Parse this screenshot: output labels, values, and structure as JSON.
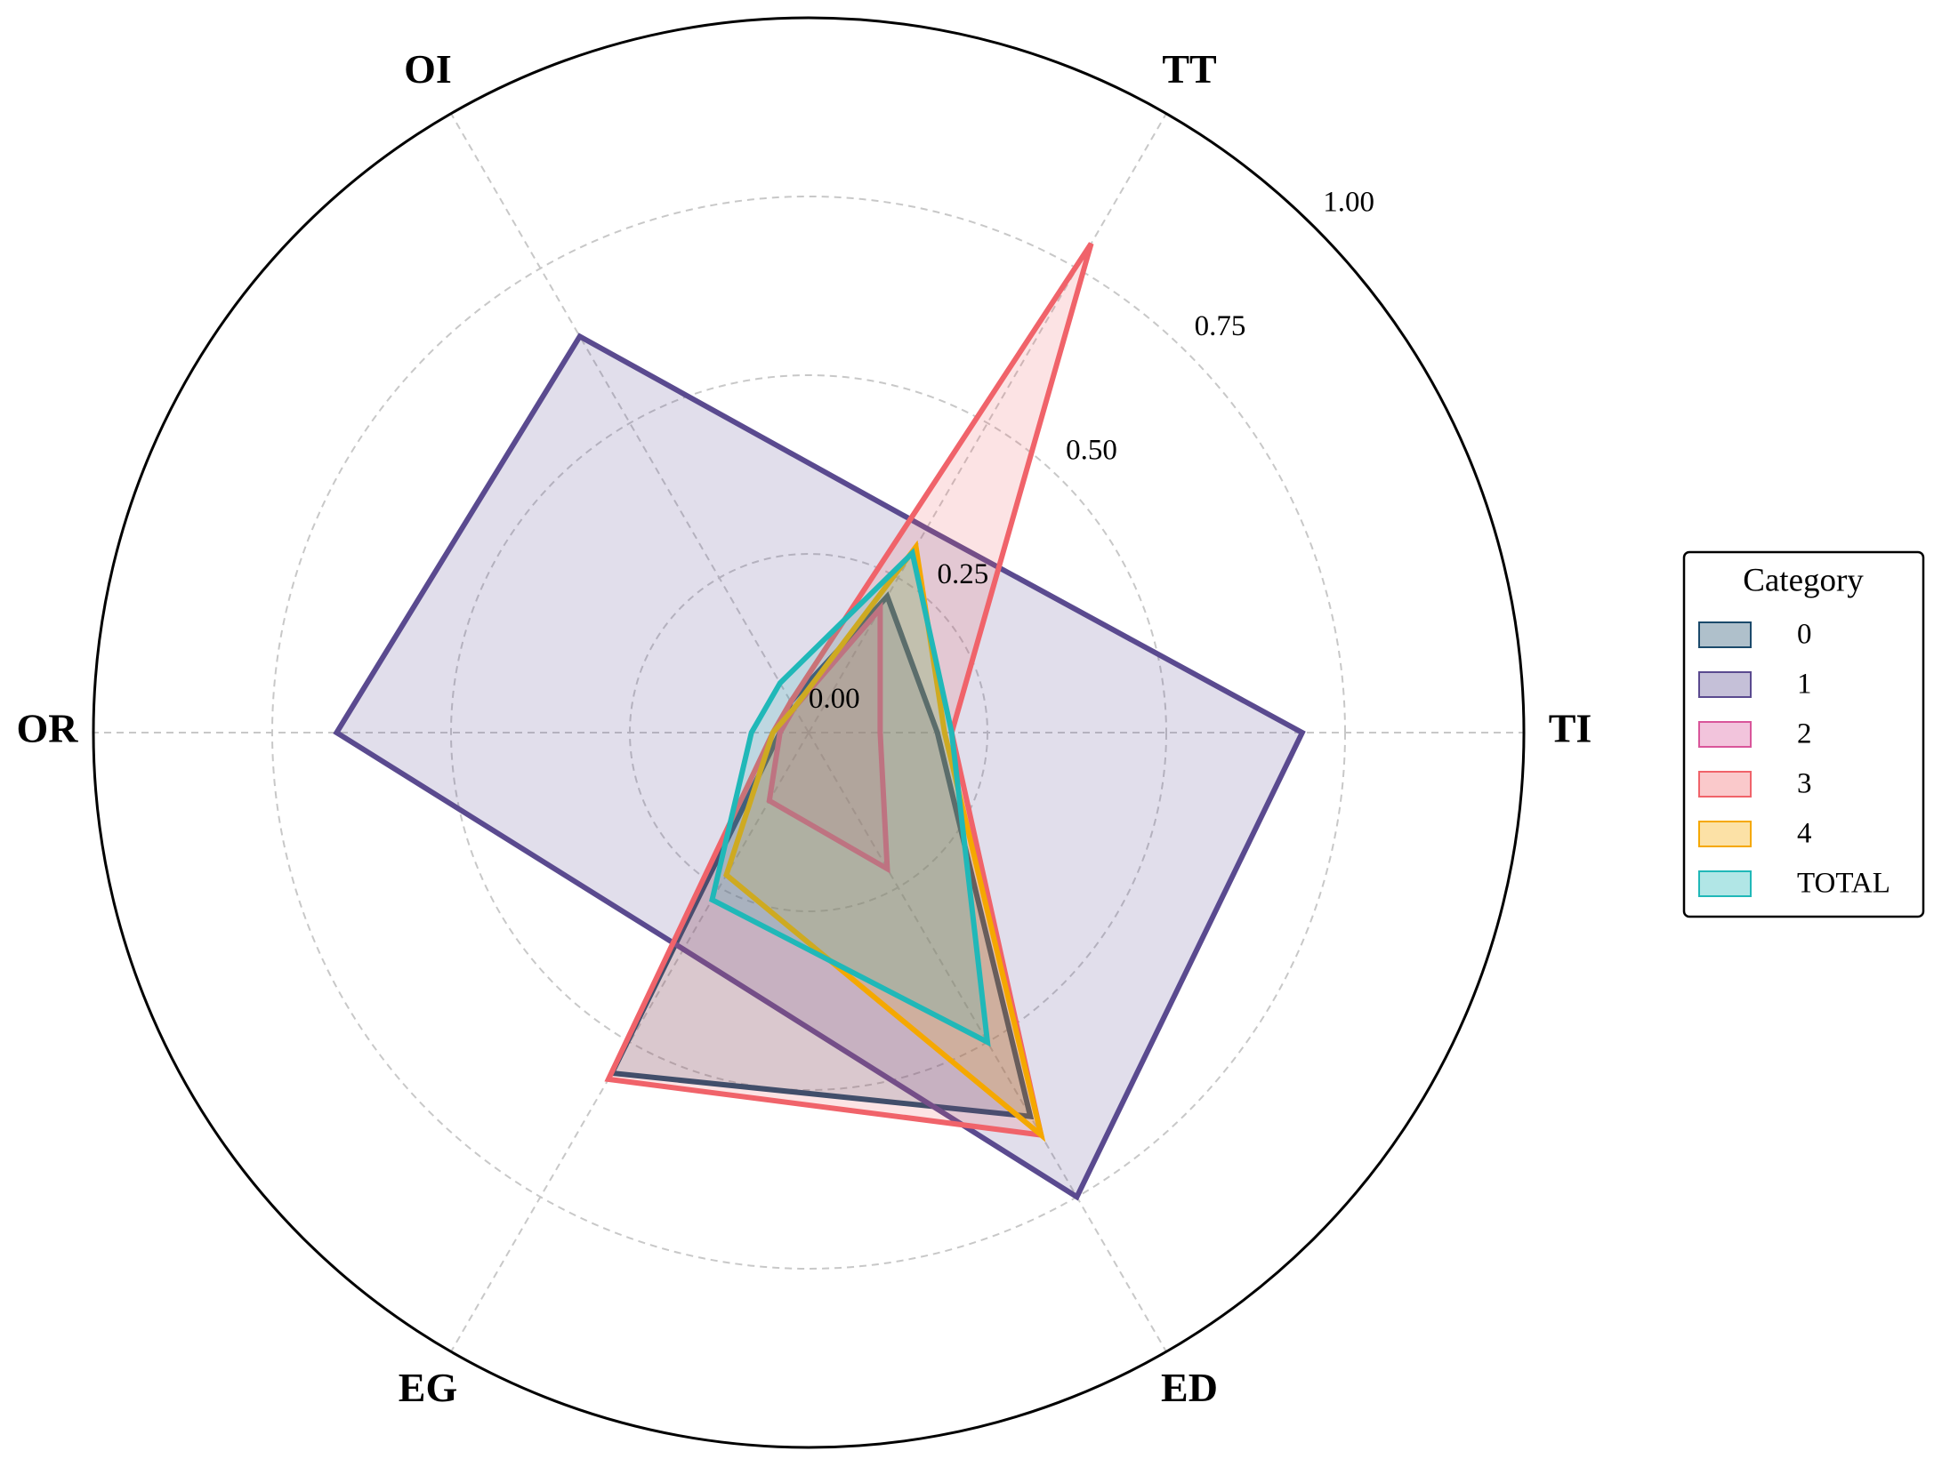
{
  "chart_data": {
    "type": "radar",
    "categories": [
      "TI",
      "TT",
      "OI",
      "OR",
      "EG",
      "ED"
    ],
    "series": [
      {
        "name": "0",
        "color": "#1b4a6b",
        "values": [
          0.18,
          0.22,
          0.05,
          0.04,
          0.55,
          0.62
        ]
      },
      {
        "name": "1",
        "color": "#5a4a8f",
        "values": [
          0.69,
          0.33,
          0.64,
          0.66,
          0.35,
          0.75
        ]
      },
      {
        "name": "2",
        "color": "#d9559a",
        "values": [
          0.1,
          0.2,
          0.04,
          0.04,
          0.11,
          0.22
        ]
      },
      {
        "name": "3",
        "color": "#f0636a",
        "values": [
          0.2,
          0.79,
          0.05,
          0.05,
          0.56,
          0.65
        ]
      },
      {
        "name": "4",
        "color": "#f5a800",
        "values": [
          0.19,
          0.3,
          0.04,
          0.05,
          0.23,
          0.65
        ]
      },
      {
        "name": "TOTAL",
        "color": "#20b8b8",
        "values": [
          0.2,
          0.29,
          0.08,
          0.08,
          0.27,
          0.5
        ]
      }
    ],
    "ylim": [
      0,
      1
    ],
    "yticks": [
      {
        "value": 0,
        "label": "0.00"
      },
      {
        "value": 0.25,
        "label": "0.25"
      },
      {
        "value": 0.5,
        "label": "0.50"
      },
      {
        "value": 0.75,
        "label": "0.75"
      },
      {
        "value": 1,
        "label": "1.00"
      }
    ],
    "grid": true,
    "legend_title": "Category",
    "legend_loc": "right"
  }
}
